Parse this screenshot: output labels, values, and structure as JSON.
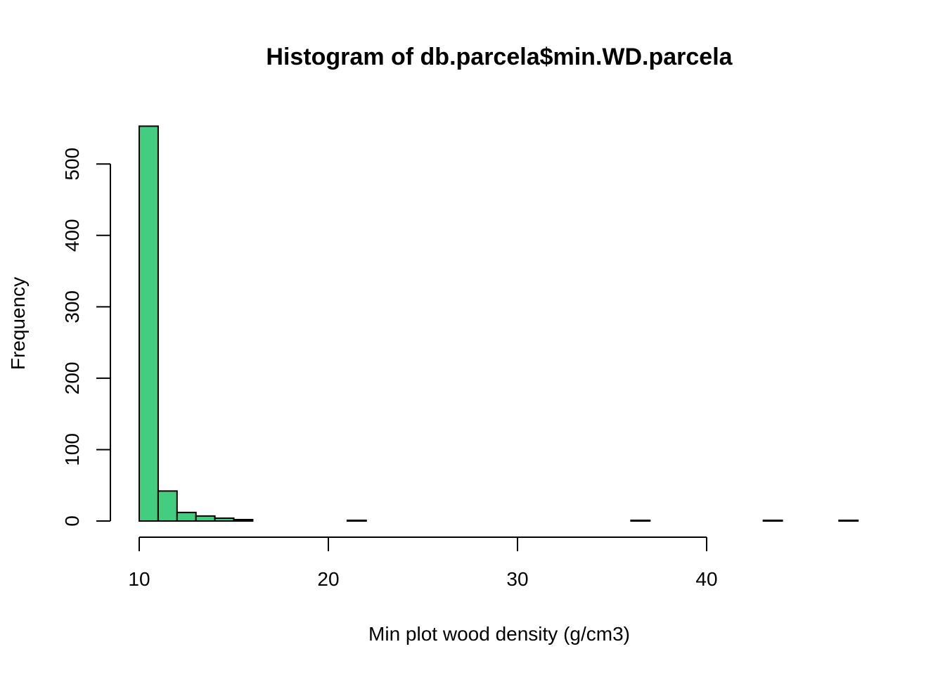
{
  "chart_data": {
    "type": "bar",
    "subtype": "histogram",
    "title": "Histogram of db.parcela$min.WD.parcela",
    "xlabel": "Min plot wood density (g/cm3)",
    "ylabel": "Frequency",
    "xlim": [
      10,
      48
    ],
    "ylim": [
      0,
      553
    ],
    "x_ticks": [
      10,
      20,
      30,
      40
    ],
    "x_tick_labels": [
      "10",
      "20",
      "30",
      "40"
    ],
    "y_ticks": [
      0,
      100,
      200,
      300,
      400,
      500
    ],
    "y_tick_labels": [
      "0",
      "100",
      "200",
      "300",
      "400",
      "500"
    ],
    "bin_width": 1,
    "bin_starts": [
      10,
      11,
      12,
      13,
      14,
      15,
      16,
      17,
      18,
      19,
      20,
      21,
      22,
      23,
      24,
      25,
      26,
      27,
      28,
      29,
      30,
      31,
      32,
      33,
      34,
      35,
      36,
      37,
      38,
      39,
      40,
      41,
      42,
      43,
      44,
      45,
      46,
      47
    ],
    "values": [
      553,
      42,
      12,
      7,
      4,
      2,
      0,
      0,
      0,
      0,
      0,
      1,
      0,
      0,
      0,
      0,
      0,
      0,
      0,
      0,
      0,
      0,
      0,
      0,
      0,
      0,
      1,
      0,
      0,
      0,
      0,
      0,
      0,
      1,
      0,
      0,
      0,
      1
    ],
    "bar_color": "#43cd80",
    "grid": false,
    "legend": "none"
  }
}
